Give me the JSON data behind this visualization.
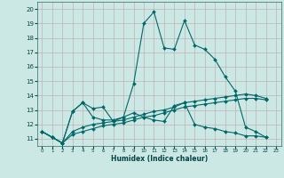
{
  "xlabel": "Humidex (Indice chaleur)",
  "xlim": [
    -0.5,
    23.5
  ],
  "ylim": [
    10.5,
    20.5
  ],
  "xticks": [
    0,
    1,
    2,
    3,
    4,
    5,
    6,
    7,
    8,
    9,
    10,
    11,
    12,
    13,
    14,
    15,
    16,
    17,
    18,
    19,
    20,
    21,
    22,
    23
  ],
  "yticks": [
    11,
    12,
    13,
    14,
    15,
    16,
    17,
    18,
    19,
    20
  ],
  "bg_color": "#cce8e4",
  "grid_color": "#c0b0b4",
  "line_color": "#006868",
  "curves": [
    {
      "x": [
        0,
        1,
        2,
        3,
        4,
        5,
        6,
        7,
        8,
        9,
        10,
        11,
        12,
        13,
        14,
        15,
        16,
        17,
        18,
        19,
        20,
        21,
        22
      ],
      "y": [
        11.5,
        11.1,
        10.7,
        12.9,
        13.5,
        13.1,
        13.2,
        12.2,
        12.5,
        14.8,
        19.0,
        19.8,
        17.3,
        17.2,
        19.2,
        17.5,
        17.2,
        16.5,
        15.3,
        14.3,
        11.8,
        11.5,
        11.1
      ]
    },
    {
      "x": [
        0,
        1,
        2,
        3,
        4,
        5,
        6,
        7,
        8,
        9,
        10,
        11,
        12,
        13,
        14,
        15,
        16,
        17,
        18,
        19,
        20,
        21,
        22
      ],
      "y": [
        11.5,
        11.1,
        10.7,
        12.9,
        13.5,
        12.5,
        12.3,
        12.3,
        12.5,
        12.8,
        12.5,
        12.3,
        12.2,
        13.3,
        13.5,
        12.0,
        11.8,
        11.7,
        11.5,
        11.4,
        11.2,
        11.2,
        11.1
      ]
    },
    {
      "x": [
        0,
        1,
        2,
        3,
        4,
        5,
        6,
        7,
        8,
        9,
        10,
        11,
        12,
        13,
        14,
        15,
        16,
        17,
        18,
        19,
        20,
        21,
        22
      ],
      "y": [
        11.5,
        11.1,
        10.7,
        11.5,
        11.8,
        12.0,
        12.1,
        12.2,
        12.3,
        12.5,
        12.7,
        12.9,
        13.0,
        13.2,
        13.5,
        13.6,
        13.7,
        13.8,
        13.9,
        14.0,
        14.1,
        14.0,
        13.8
      ]
    },
    {
      "x": [
        0,
        1,
        2,
        3,
        4,
        5,
        6,
        7,
        8,
        9,
        10,
        11,
        12,
        13,
        14,
        15,
        16,
        17,
        18,
        19,
        20,
        21,
        22
      ],
      "y": [
        11.5,
        11.1,
        10.7,
        11.3,
        11.5,
        11.7,
        11.9,
        12.0,
        12.1,
        12.3,
        12.5,
        12.6,
        12.8,
        13.0,
        13.2,
        13.3,
        13.4,
        13.5,
        13.6,
        13.7,
        13.8,
        13.8,
        13.7
      ]
    }
  ]
}
